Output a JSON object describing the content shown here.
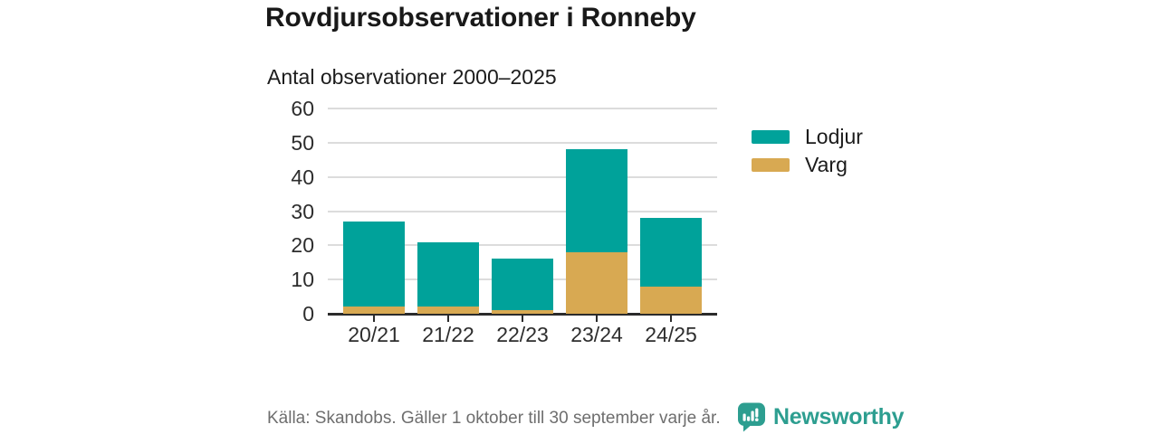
{
  "header": {
    "title": "Rovdjursobservationer i Ronneby",
    "subtitle": "Antal observationer 2000–2025"
  },
  "chart_data": {
    "type": "bar",
    "stacked": true,
    "title": "Rovdjursobservationer i Ronneby",
    "subtitle": "Antal observationer 2000–2025",
    "categories": [
      "20/21",
      "21/22",
      "22/23",
      "23/24",
      "24/25"
    ],
    "series": [
      {
        "name": "Lodjur",
        "color": "#00a29a",
        "values": [
          25,
          19,
          15,
          30,
          20
        ]
      },
      {
        "name": "Varg",
        "color": "#d8a952",
        "values": [
          2,
          2,
          1,
          18,
          8
        ]
      }
    ],
    "stacked_totals": [
      27,
      21,
      16,
      48,
      28
    ],
    "ylim": [
      0,
      60
    ],
    "ytick_step": 10,
    "ytick_labels": [
      "0",
      "10",
      "20",
      "30",
      "40",
      "50",
      "60"
    ],
    "grid": true,
    "legend_position": "right",
    "xlabel": "",
    "ylabel": ""
  },
  "footer": {
    "source": "Källa: Skandobs. Gäller 1 oktober till 30 september varje år.",
    "brand": "Newsworthy"
  },
  "colors": {
    "lodjur": "#00a29a",
    "varg": "#d8a952",
    "brand_teal": "#2d9e90",
    "axis": "#2b2b2b",
    "gridline": "#dcdcdc",
    "source_text": "#6e6e6e"
  }
}
